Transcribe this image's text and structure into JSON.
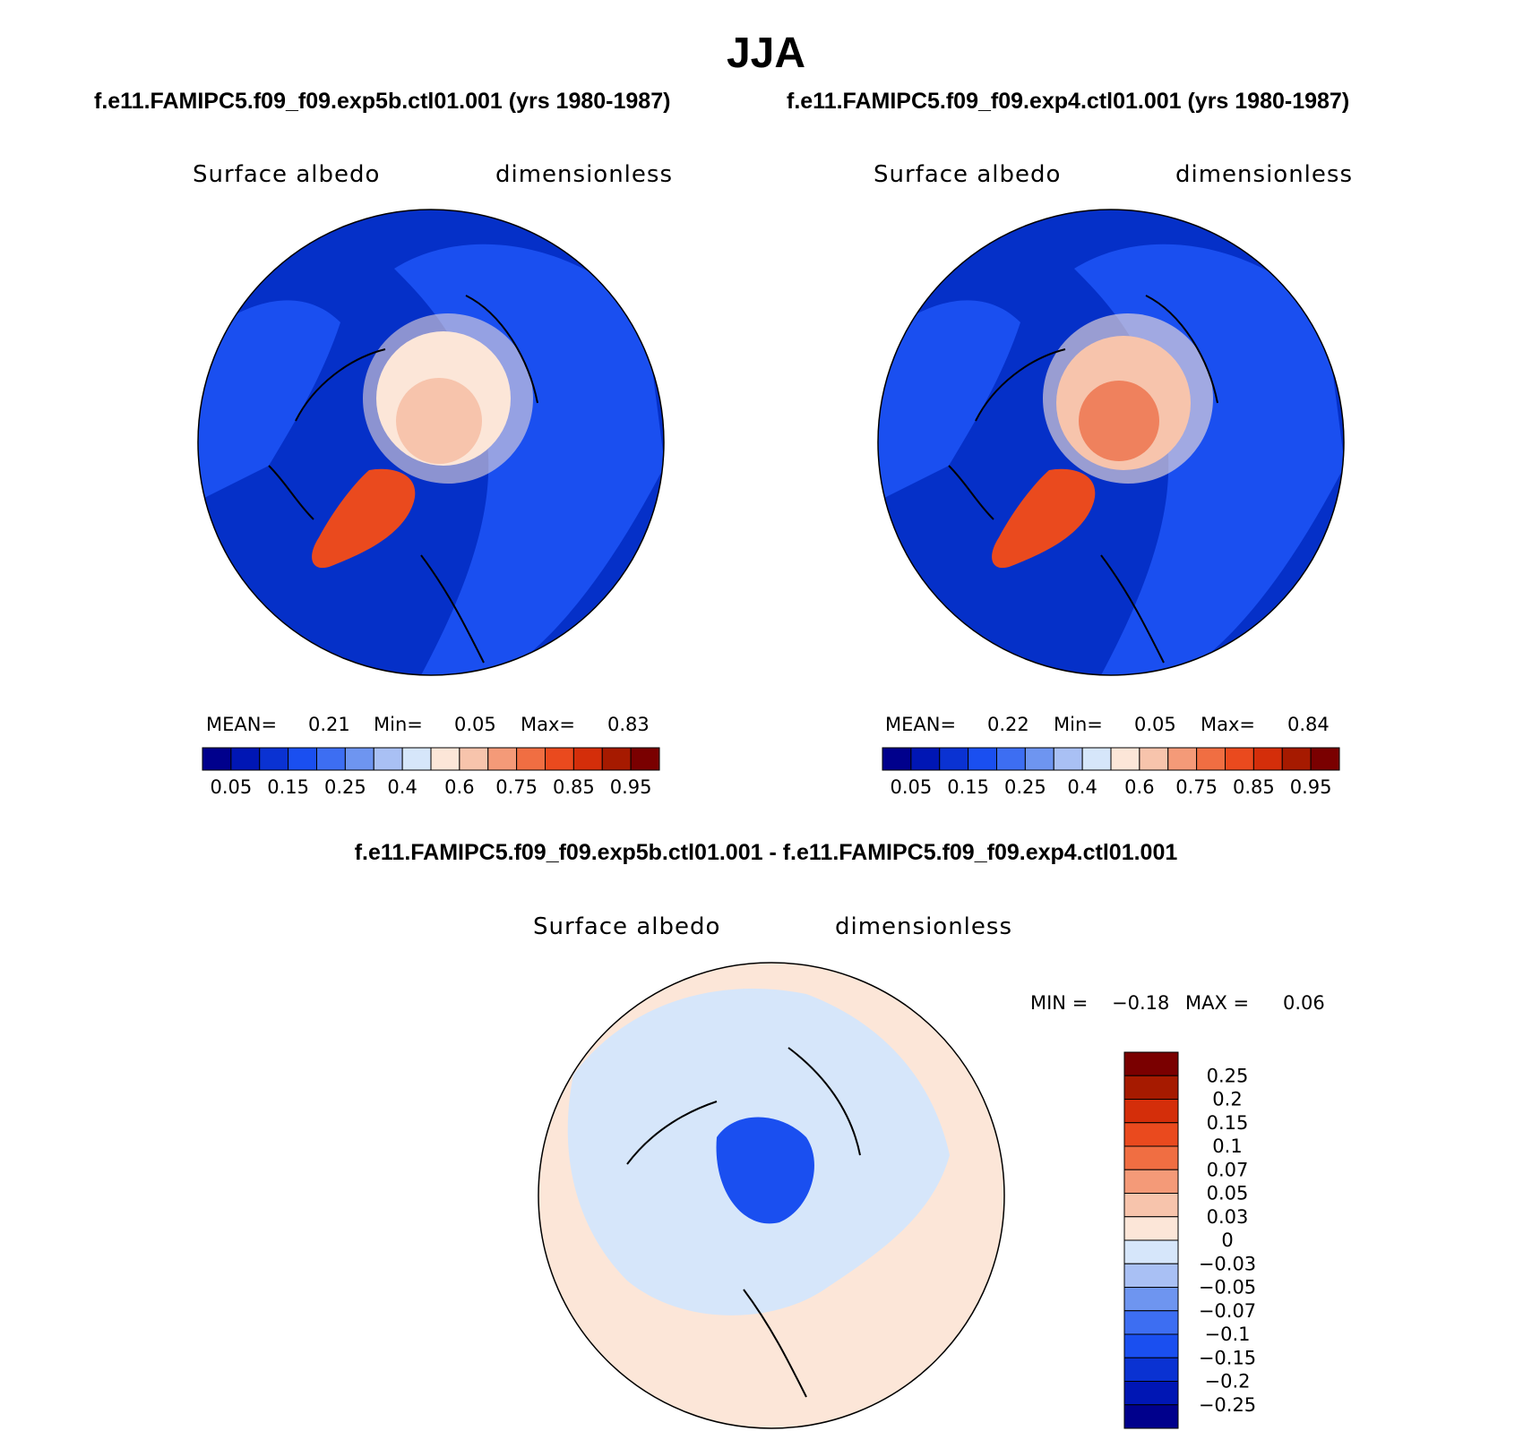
{
  "figure": {
    "season": "JJA",
    "case_a_title": "f.e11.FAMIPC5.f09_f09.exp5b.ctl01.001 (yrs 1980-1987)",
    "case_b_title": "f.e11.FAMIPC5.f09_f09.exp4.ctl01.001 (yrs 1980-1987)",
    "diff_title": "f.e11.FAMIPC5.f09_f09.exp5b.ctl01.001 - f.e11.FAMIPC5.f09_f09.exp4.ctl01.001"
  },
  "panels": [
    {
      "variable": "Surface albedo",
      "units": "dimensionless",
      "mean_label": "MEAN=",
      "mean_value": "0.21",
      "min_label": "Min=",
      "min_value": "0.05",
      "max_label": "Max=",
      "max_value": "0.83"
    },
    {
      "variable": "Surface albedo",
      "units": "dimensionless",
      "mean_label": "MEAN=",
      "mean_value": "0.22",
      "min_label": "Min=",
      "min_value": "0.05",
      "max_label": "Max=",
      "max_value": "0.84"
    }
  ],
  "diff_panel": {
    "variable": "Surface albedo",
    "units": "dimensionless",
    "min_label": "MIN =",
    "min_value": "−0.18",
    "max_label": "MAX =",
    "max_value": "0.06"
  },
  "colorbar_main": {
    "tick_labels": [
      "0.05",
      "0.15",
      "0.25",
      "0.4",
      "0.6",
      "0.75",
      "0.85",
      "0.95"
    ],
    "colors": [
      "#00008c",
      "#0016b4",
      "#0a32d2",
      "#1a4ff0",
      "#3d6ef2",
      "#6e95f0",
      "#a9c0f4",
      "#d6e6fa",
      "#fce6d8",
      "#f7c4ac",
      "#f49a78",
      "#f06e42",
      "#ea4a1e",
      "#d42e0a",
      "#a61a00",
      "#7a0000"
    ]
  },
  "colorbar_diff": {
    "tick_labels": [
      "0.25",
      "0.2",
      "0.15",
      "0.1",
      "0.07",
      "0.05",
      "0.03",
      "0",
      "−0.03",
      "−0.05",
      "−0.07",
      "−0.1",
      "−0.15",
      "−0.2",
      "−0.25"
    ],
    "colors": [
      "#7a0000",
      "#a61a00",
      "#d42e0a",
      "#ea4a1e",
      "#f06e42",
      "#f49a78",
      "#f7c4ac",
      "#fce6d8",
      "#d6e6fa",
      "#a9c0f4",
      "#6e95f0",
      "#3d6ef2",
      "#1a4ff0",
      "#0a32d2",
      "#0016b4",
      "#00008c"
    ]
  },
  "map_colors": {
    "ocean": "#0530c8",
    "ocean_dark": "#0422a8",
    "land": "#1a4ff0",
    "ice_pale": "#fce6d8",
    "ice_mid": "#f7c4ac",
    "greenland": "#ea4a1e",
    "diff_pos": "#fce6d8",
    "diff_neg": "#d6e6fa",
    "diff_core": "#1a4ff0"
  }
}
